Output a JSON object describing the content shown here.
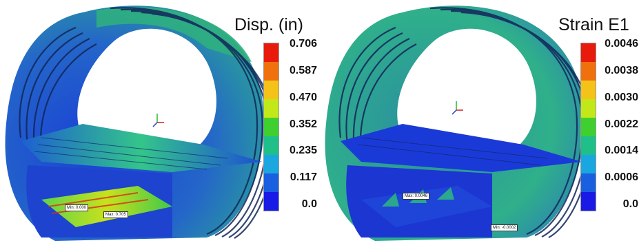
{
  "left_panel": {
    "title": "Disp. (in)",
    "legend_ticks": [
      "0.706",
      "0.587",
      "0.470",
      "0.352",
      "0.235",
      "0.117",
      "0.0"
    ],
    "legend_colors": [
      "#e81a0c",
      "#f0700d",
      "#f5c21a",
      "#c2e81a",
      "#3fcf2e",
      "#1fbf8a",
      "#1aa7e0",
      "#1a5fe0",
      "#1a1ae6"
    ],
    "min_label": "Min: 0.000",
    "max_label": "Max: 0.705",
    "axis_triad": [
      "Y",
      "X",
      "Z"
    ]
  },
  "right_panel": {
    "title": "Strain E1",
    "legend_ticks": [
      "0.0046",
      "0.0038",
      "0.0030",
      "0.0022",
      "0.0014",
      "0.0006",
      "0.0"
    ],
    "legend_colors": [
      "#e81a0c",
      "#f0700d",
      "#f5c21a",
      "#c2e81a",
      "#3fcf2e",
      "#1fbf8a",
      "#1aa7e0",
      "#1a5fe0",
      "#1a1ae6"
    ],
    "max_label": "Max: 0.0046",
    "min_label": "Min: -0.0002",
    "axis_triad": [
      "Y",
      "X",
      "Z"
    ]
  }
}
